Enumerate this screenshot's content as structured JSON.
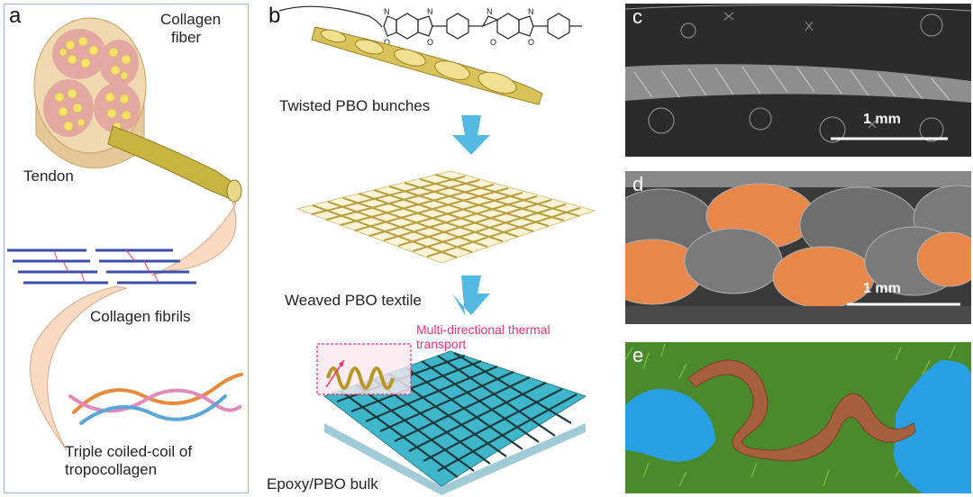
{
  "panel_a": {
    "letter": "a",
    "collagen_fiber": [
      "Collagen",
      "fiber"
    ],
    "tendon": "Tendon",
    "collagen_fibrils": "Collagen fibrils",
    "triple_coil": [
      "Triple coiled-coil of",
      "tropocollagen"
    ]
  },
  "panel_b": {
    "letter": "b",
    "twisted": "Twisted PBO bunches",
    "weaved": "Weaved PBO textile",
    "multi": [
      "Multi-directional thermal",
      "transport"
    ],
    "bulk": "Epoxy/PBO bulk",
    "chem_atoms": [
      "N",
      "O",
      "N",
      "O",
      "N",
      "O",
      "N",
      "O"
    ]
  },
  "panel_c": {
    "letter": "c",
    "scale": "1 mm"
  },
  "panel_d": {
    "letter": "d",
    "scale": "1 mm"
  },
  "panel_e": {
    "letter": "e"
  },
  "colors": {
    "fiber_tan": "#f0d9b0",
    "fibril_pink": "#e3a9a0",
    "fibril_yellow": "#f4e36a",
    "arrow_blue": "#54b9e2",
    "epoxy_cyan": "#3fb6c9",
    "highlight_pink": "#e8336f",
    "sem_orange": "#e8874a",
    "glove_blue": "#2aa0e4",
    "grass_green": "#4b8a2c",
    "film_brown": "#a6603e"
  }
}
